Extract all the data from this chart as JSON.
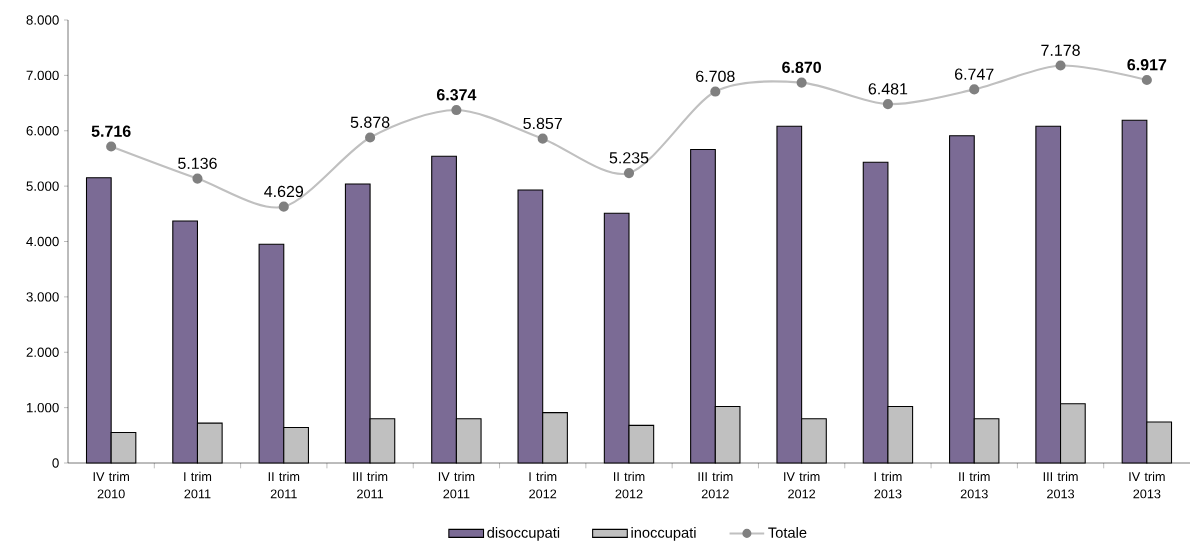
{
  "chart_data": {
    "type": "bar",
    "categories": [
      "IV trim 2010",
      "I trim 2011",
      "II trim 2011",
      "III trim 2011",
      "IV trim 2011",
      "I trim 2012",
      "II trim 2012",
      "III trim 2012",
      "IV trim 2012",
      "I trim 2013",
      "II trim 2013",
      "III trim 2013",
      "IV trim 2013"
    ],
    "series": [
      {
        "name": "disoccupati",
        "color": "#7b6b95",
        "values": [
          5150,
          4370,
          3950,
          5040,
          5540,
          4930,
          4510,
          5660,
          6080,
          5430,
          5910,
          6080,
          6190
        ]
      },
      {
        "name": "inoccupati",
        "color": "#c0c0c0",
        "values": [
          550,
          720,
          640,
          800,
          800,
          910,
          680,
          1020,
          800,
          1020,
          800,
          1070,
          740
        ]
      },
      {
        "name": "Totale",
        "type": "line",
        "color": "#c0c0c0",
        "marker": "circle",
        "values": [
          5716,
          5136,
          4629,
          5878,
          6374,
          5857,
          5235,
          6708,
          6870,
          6481,
          6747,
          7178,
          6917
        ],
        "value_labels": [
          "**5.716**",
          "5.136",
          "4.629",
          "5.878",
          "**6.374**",
          "5.857",
          "5.235",
          "6.708",
          "**6.870**",
          "6.481",
          "6.747",
          "7.178",
          "**6.917**"
        ]
      }
    ],
    "ylim": [
      0,
      8000
    ],
    "yticks": [
      {
        "value": 0,
        "label": "0"
      },
      {
        "value": 1000,
        "label": "1.000"
      },
      {
        "value": 2000,
        "label": "2.000"
      },
      {
        "value": 3000,
        "label": "3.000"
      },
      {
        "value": 4000,
        "label": "4.000"
      },
      {
        "value": 5000,
        "label": "5.000"
      },
      {
        "value": 6000,
        "label": "6.000"
      },
      {
        "value": 7000,
        "label": "7.000"
      },
      {
        "value": 8000,
        "label": "8.000"
      }
    ],
    "grid": false,
    "legend": "bottom"
  }
}
